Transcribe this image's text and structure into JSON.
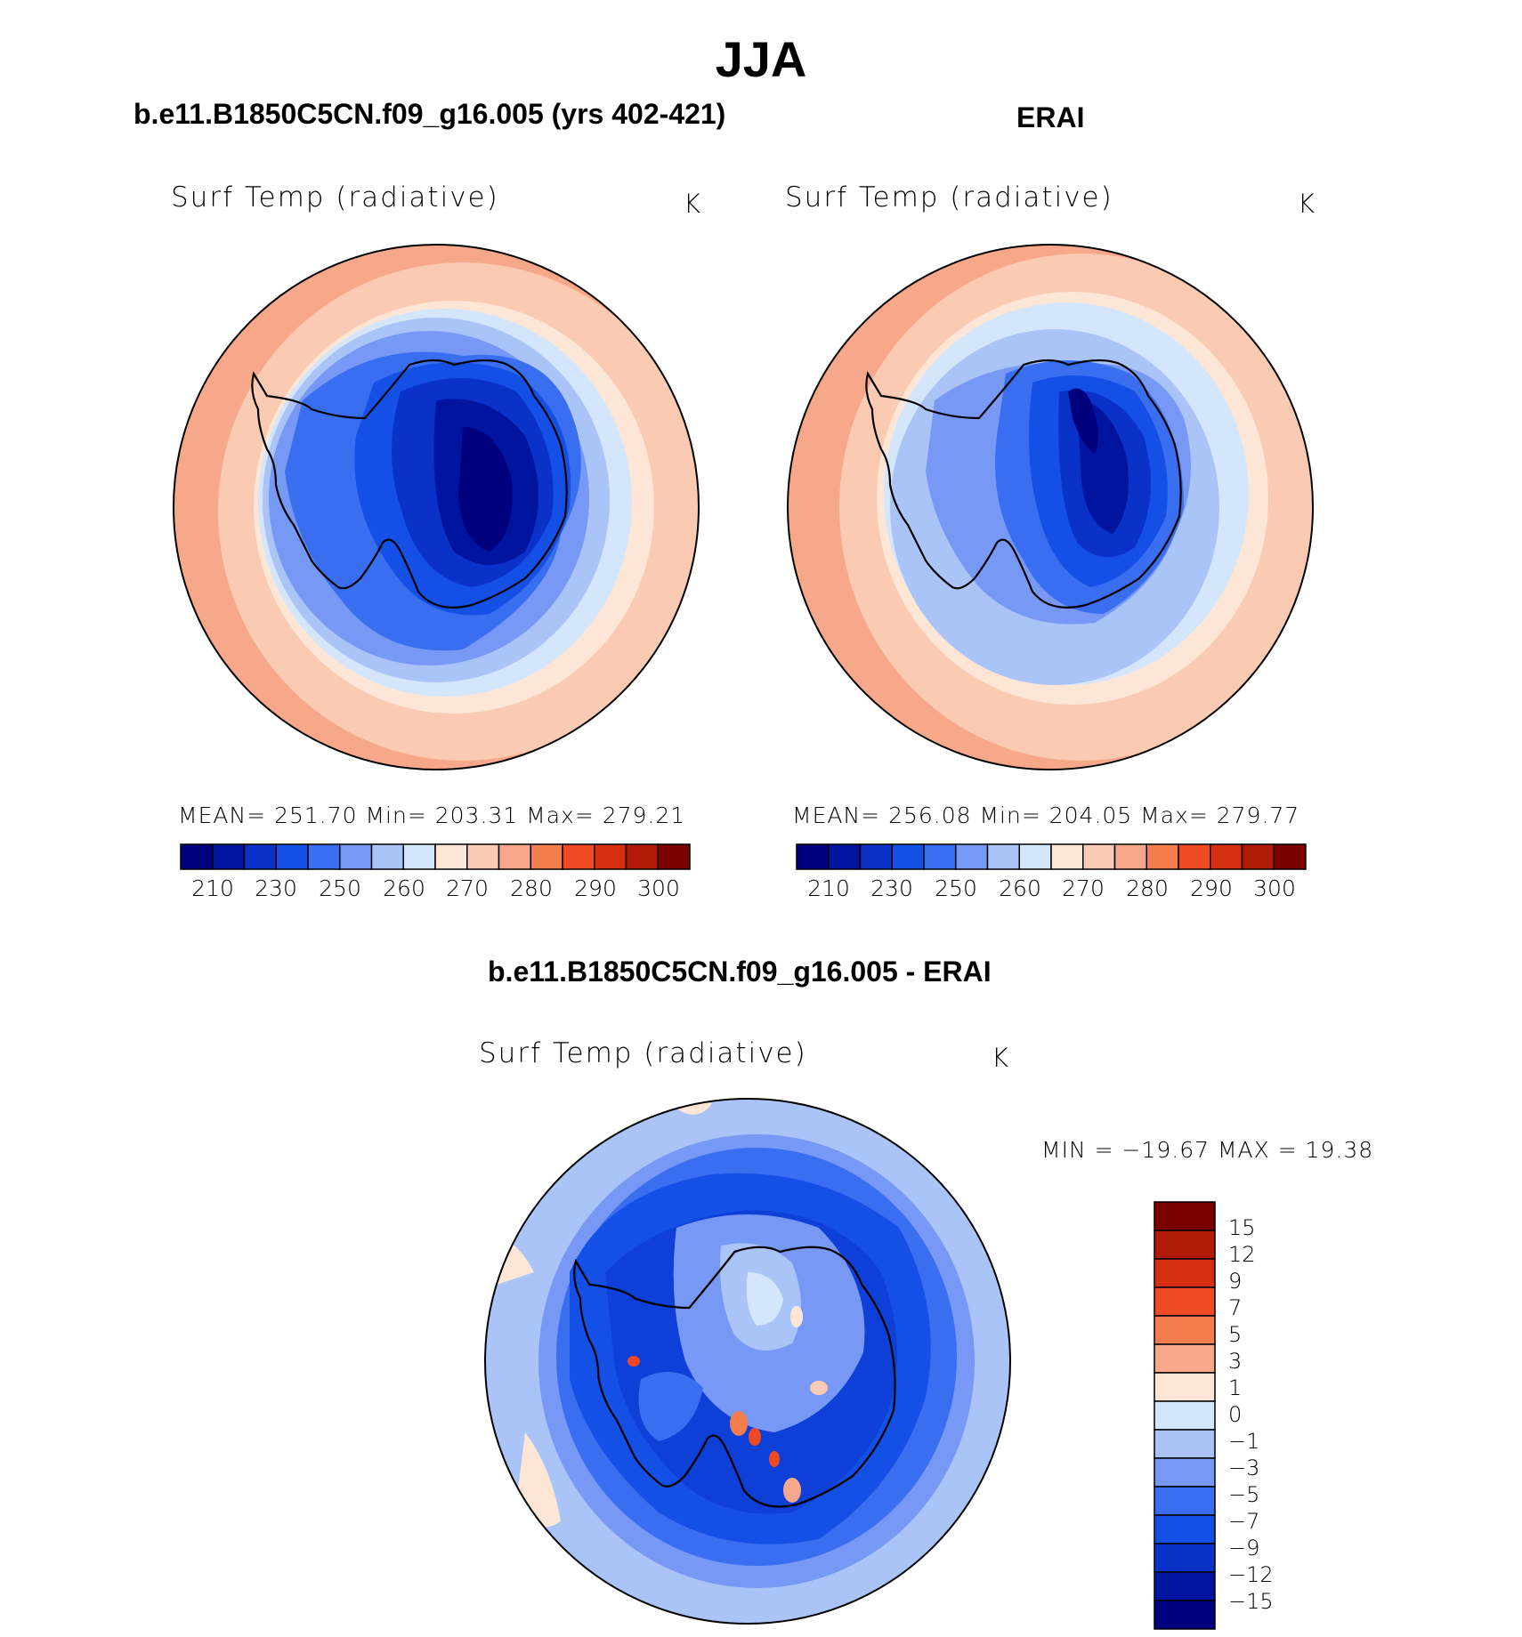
{
  "figure_title": "JJA",
  "panel_left": {
    "title": "b.e11.B1850C5CN.f09_g16.005 (yrs 402-421)",
    "variable": "Surf Temp (radiative)",
    "units": "K",
    "stats": "MEAN= 251.70   Min= 203.31   Max= 279.21"
  },
  "panel_right": {
    "title": "ERAI",
    "variable": "Surf Temp (radiative)",
    "units": "K",
    "stats": "MEAN= 256.08   Min= 204.05   Max= 279.77"
  },
  "panel_diff": {
    "title": "b.e11.B1850C5CN.f09_g16.005 - ERAI",
    "variable": "Surf Temp (radiative)",
    "units": "K",
    "stats": "MIN = −19.67 MAX =   19.38"
  },
  "colorbar_abs": {
    "labels": [
      "210",
      "230",
      "250",
      "260",
      "270",
      "280",
      "290",
      "300"
    ],
    "colors": [
      "#00007f",
      "#0014a0",
      "#0a32c8",
      "#1450e6",
      "#3a6ef0",
      "#7898f5",
      "#aac4f8",
      "#d4e6fb",
      "#fde6d6",
      "#fbcab2",
      "#f8a88a",
      "#f47d4e",
      "#ee4a24",
      "#d62e10",
      "#b11a06",
      "#7a0000"
    ]
  },
  "colorbar_diff": {
    "labels": [
      "15",
      "12",
      "9",
      "7",
      "5",
      "3",
      "1",
      "0",
      "−1",
      "−3",
      "−5",
      "−7",
      "−9",
      "−12",
      "−15"
    ],
    "colors": [
      "#7a0000",
      "#b11a06",
      "#d62e10",
      "#ee4a24",
      "#f47d4e",
      "#f8a88a",
      "#fde6d6",
      "#d4e6fb",
      "#aac4f8",
      "#7898f5",
      "#3a6ef0",
      "#1450e6",
      "#0a32c8",
      "#0014a0",
      "#00007f"
    ]
  },
  "chart_data": [
    {
      "type": "heatmap",
      "title": "b.e11.B1850C5CN.f09_g16.005 (yrs 402-421)",
      "variable": "Surf Temp (radiative)",
      "units": "K",
      "mean": 251.7,
      "min": 203.31,
      "max": 279.21,
      "contour_levels": [
        210,
        220,
        230,
        240,
        250,
        255,
        260,
        265,
        270,
        275,
        280,
        285,
        290,
        295,
        300
      ]
    },
    {
      "type": "heatmap",
      "title": "ERAI",
      "variable": "Surf Temp (radiative)",
      "units": "K",
      "mean": 256.08,
      "min": 204.05,
      "max": 279.77,
      "contour_levels": [
        210,
        220,
        230,
        240,
        250,
        255,
        260,
        265,
        270,
        275,
        280,
        285,
        290,
        295,
        300
      ]
    },
    {
      "type": "heatmap",
      "title": "b.e11.B1850C5CN.f09_g16.005 - ERAI",
      "variable": "Surf Temp (radiative)",
      "units": "K",
      "min": -19.67,
      "max": 19.38,
      "contour_levels": [
        -15,
        -12,
        -9,
        -7,
        -5,
        -3,
        -1,
        0,
        1,
        3,
        5,
        7,
        9,
        12,
        15
      ]
    }
  ]
}
